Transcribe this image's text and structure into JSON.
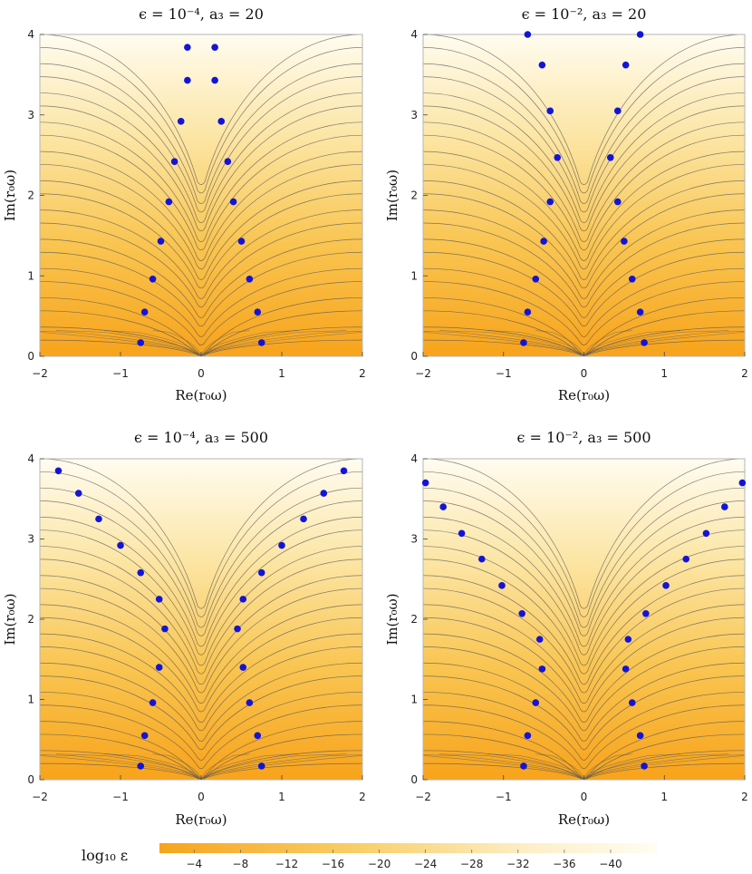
{
  "chart_data": [
    {
      "type": "scatter",
      "title": "ϵ = 10⁻⁴, a₃ = 20",
      "xlabel": "Re(r₀ω)",
      "ylabel": "Im(r₀ω)",
      "xlim": [
        -2,
        2
      ],
      "ylim": [
        0,
        4
      ],
      "xticks": [
        "−2",
        "−1",
        "0",
        "1",
        "2"
      ],
      "yticks": [
        "0",
        "1",
        "2",
        "3",
        "4"
      ],
      "background": "contour of log10 ε",
      "series": [
        {
          "color": "#1414d6",
          "points": [
            [
              -0.75,
              0.17
            ],
            [
              0.75,
              0.17
            ],
            [
              -0.7,
              0.55
            ],
            [
              0.7,
              0.55
            ],
            [
              -0.6,
              0.96
            ],
            [
              0.6,
              0.96
            ],
            [
              -0.5,
              1.43
            ],
            [
              0.5,
              1.43
            ],
            [
              -0.4,
              1.92
            ],
            [
              0.4,
              1.92
            ],
            [
              -0.33,
              2.42
            ],
            [
              0.33,
              2.42
            ],
            [
              -0.25,
              2.92
            ],
            [
              0.25,
              2.92
            ],
            [
              -0.17,
              3.43
            ],
            [
              0.17,
              3.43
            ],
            [
              -0.17,
              3.84
            ],
            [
              0.17,
              3.84
            ]
          ]
        }
      ]
    },
    {
      "type": "scatter",
      "title": "ϵ = 10⁻², a₃ = 20",
      "xlabel": "Re(r₀ω)",
      "ylabel": "Im(r₀ω)",
      "xlim": [
        -2,
        2
      ],
      "ylim": [
        0,
        4
      ],
      "xticks": [
        "−2",
        "−1",
        "0",
        "1",
        "2"
      ],
      "yticks": [
        "0",
        "1",
        "2",
        "3",
        "4"
      ],
      "background": "contour of log10 ε",
      "series": [
        {
          "color": "#1414d6",
          "points": [
            [
              -0.75,
              0.17
            ],
            [
              0.75,
              0.17
            ],
            [
              -0.7,
              0.55
            ],
            [
              0.7,
              0.55
            ],
            [
              -0.6,
              0.96
            ],
            [
              0.6,
              0.96
            ],
            [
              -0.5,
              1.43
            ],
            [
              0.5,
              1.43
            ],
            [
              -0.42,
              1.92
            ],
            [
              0.42,
              1.92
            ],
            [
              -0.33,
              2.47
            ],
            [
              0.33,
              2.47
            ],
            [
              -0.42,
              3.05
            ],
            [
              0.42,
              3.05
            ],
            [
              -0.52,
              3.62
            ],
            [
              0.52,
              3.62
            ],
            [
              -0.7,
              4.02
            ],
            [
              0.7,
              4.02
            ]
          ]
        }
      ]
    },
    {
      "type": "scatter",
      "title": "ϵ = 10⁻⁴, a₃ = 500",
      "xlabel": "Re(r₀ω)",
      "ylabel": "Im(r₀ω)",
      "xlim": [
        -2,
        2
      ],
      "ylim": [
        0,
        4
      ],
      "xticks": [
        "−2",
        "−1",
        "0",
        "1",
        "2"
      ],
      "yticks": [
        "0",
        "1",
        "2",
        "3",
        "4"
      ],
      "background": "contour of log10 ε",
      "series": [
        {
          "color": "#1414d6",
          "points": [
            [
              -0.75,
              0.17
            ],
            [
              0.75,
              0.17
            ],
            [
              -0.7,
              0.55
            ],
            [
              0.7,
              0.55
            ],
            [
              -0.6,
              0.96
            ],
            [
              0.6,
              0.96
            ],
            [
              -0.52,
              1.4
            ],
            [
              0.52,
              1.4
            ],
            [
              -0.45,
              1.88
            ],
            [
              0.45,
              1.88
            ],
            [
              -0.52,
              2.25
            ],
            [
              0.52,
              2.25
            ],
            [
              -0.75,
              2.58
            ],
            [
              0.75,
              2.58
            ],
            [
              -1.0,
              2.92
            ],
            [
              1.0,
              2.92
            ],
            [
              -1.27,
              3.25
            ],
            [
              1.27,
              3.25
            ],
            [
              -1.52,
              3.57
            ],
            [
              1.52,
              3.57
            ],
            [
              -1.77,
              3.85
            ],
            [
              1.77,
              3.85
            ]
          ]
        }
      ]
    },
    {
      "type": "scatter",
      "title": "ϵ = 10⁻², a₃ = 500",
      "xlabel": "Re(r₀ω)",
      "ylabel": "Im(r₀ω)",
      "xlim": [
        -2,
        2
      ],
      "ylim": [
        0,
        4
      ],
      "xticks": [
        "−2",
        "−1",
        "0",
        "1",
        "2"
      ],
      "yticks": [
        "0",
        "1",
        "2",
        "3",
        "4"
      ],
      "background": "contour of log10 ε",
      "series": [
        {
          "color": "#1414d6",
          "points": [
            [
              -0.75,
              0.17
            ],
            [
              0.75,
              0.17
            ],
            [
              -0.7,
              0.55
            ],
            [
              0.7,
              0.55
            ],
            [
              -0.6,
              0.96
            ],
            [
              0.6,
              0.96
            ],
            [
              -0.52,
              1.38
            ],
            [
              0.52,
              1.38
            ],
            [
              -0.55,
              1.75
            ],
            [
              0.55,
              1.75
            ],
            [
              -0.77,
              2.07
            ],
            [
              0.77,
              2.07
            ],
            [
              -1.02,
              2.42
            ],
            [
              1.02,
              2.42
            ],
            [
              -1.27,
              2.75
            ],
            [
              1.27,
              2.75
            ],
            [
              -1.52,
              3.07
            ],
            [
              1.52,
              3.07
            ],
            [
              -1.75,
              3.4
            ],
            [
              1.75,
              3.4
            ],
            [
              -1.97,
              3.7
            ],
            [
              1.97,
              3.7
            ]
          ]
        }
      ]
    }
  ],
  "colorbar": {
    "label": "log₁₀ ε",
    "ticks": [
      "−4",
      "−8",
      "−12",
      "−16",
      "−20",
      "−24",
      "−28",
      "−32",
      "−36",
      "−40"
    ],
    "range": [
      -1,
      -44
    ],
    "color_low": "#f7a41c",
    "color_high": "#fffdf2"
  },
  "colors": {
    "point": "#1414d6",
    "contour_line": "#555555",
    "frame": "#b5b5b5"
  }
}
